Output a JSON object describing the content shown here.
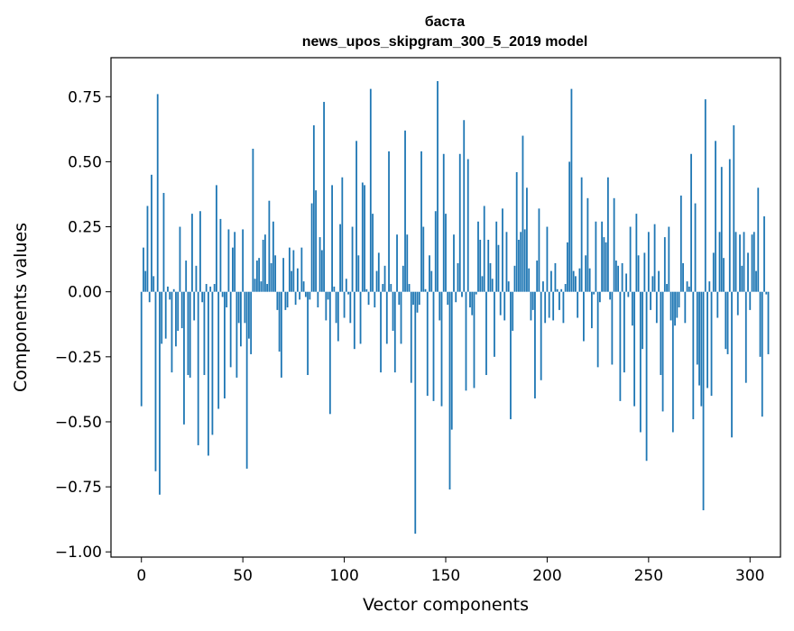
{
  "chart_data": {
    "type": "bar",
    "title_line1": "баста",
    "title_line2": "news_upos_skipgram_300_5_2019 model",
    "xlabel": "Vector components",
    "ylabel": "Components values",
    "xlim": [
      -15,
      315
    ],
    "ylim": [
      -1.02,
      0.9
    ],
    "xticks": [
      0,
      50,
      100,
      150,
      200,
      250,
      300
    ],
    "xtick_labels": [
      "0",
      "50",
      "100",
      "150",
      "200",
      "250",
      "300"
    ],
    "yticks": [
      -1.0,
      -0.75,
      -0.5,
      -0.25,
      0.0,
      0.25,
      0.5,
      0.75
    ],
    "ytick_labels": [
      "−1.00",
      "−0.75",
      "−0.50",
      "−0.25",
      "0.00",
      "0.25",
      "0.50",
      "0.75"
    ],
    "bar_color": "#1f77b4",
    "values": [
      -0.44,
      0.17,
      0.08,
      0.33,
      -0.04,
      0.45,
      0.06,
      -0.69,
      0.76,
      -0.78,
      -0.2,
      0.38,
      -0.18,
      0.02,
      -0.03,
      -0.31,
      0.01,
      -0.21,
      -0.15,
      0.25,
      -0.14,
      -0.51,
      0.12,
      -0.32,
      -0.33,
      0.3,
      -0.11,
      0.1,
      -0.59,
      0.31,
      -0.04,
      -0.32,
      0.03,
      -0.63,
      0.02,
      -0.55,
      0.03,
      0.41,
      -0.45,
      0.28,
      -0.02,
      -0.41,
      -0.06,
      0.24,
      -0.29,
      0.17,
      0.23,
      -0.33,
      -0.12,
      -0.21,
      0.24,
      -0.12,
      -0.68,
      -0.18,
      -0.24,
      0.55,
      0.05,
      0.12,
      0.13,
      0.04,
      0.2,
      0.22,
      0.03,
      0.35,
      0.11,
      0.27,
      0.14,
      -0.07,
      -0.23,
      -0.33,
      0.13,
      -0.07,
      -0.06,
      0.17,
      0.08,
      0.16,
      -0.05,
      0.09,
      -0.03,
      0.17,
      0.04,
      -0.02,
      -0.32,
      -0.03,
      0.34,
      0.64,
      0.39,
      -0.06,
      0.21,
      0.16,
      0.73,
      -0.11,
      -0.03,
      -0.47,
      0.41,
      0.02,
      -0.12,
      -0.19,
      0.26,
      0.44,
      -0.1,
      0.05,
      -0.01,
      -0.12,
      0.25,
      -0.22,
      0.58,
      0.14,
      -0.2,
      0.42,
      0.41,
      0.01,
      -0.05,
      0.78,
      0.3,
      -0.06,
      0.08,
      0.15,
      -0.31,
      0.03,
      0.1,
      -0.2,
      0.54,
      0.03,
      -0.15,
      -0.31,
      0.22,
      -0.05,
      -0.2,
      0.1,
      0.62,
      0.22,
      0.03,
      -0.35,
      -0.05,
      -0.93,
      -0.08,
      -0.05,
      0.54,
      0.25,
      0.01,
      -0.4,
      0.14,
      0.08,
      -0.42,
      0.31,
      0.81,
      -0.11,
      -0.44,
      0.53,
      0.3,
      -0.05,
      -0.76,
      -0.53,
      0.22,
      -0.04,
      0.11,
      0.53,
      -0.02,
      0.66,
      -0.38,
      0.51,
      -0.06,
      -0.09,
      -0.37,
      -0.01,
      0.27,
      0.2,
      0.06,
      0.33,
      -0.32,
      0.2,
      0.11,
      0.05,
      -0.25,
      0.27,
      0.18,
      -0.09,
      0.32,
      -0.11,
      0.23,
      0.04,
      -0.49,
      -0.15,
      0.1,
      0.46,
      0.2,
      0.23,
      0.6,
      0.24,
      0.4,
      0.09,
      -0.11,
      -0.07,
      -0.41,
      0.12,
      0.32,
      -0.34,
      0.04,
      -0.12,
      0.25,
      -0.1,
      0.08,
      -0.11,
      0.11,
      0.01,
      -0.07,
      0.01,
      -0.12,
      0.03,
      0.19,
      0.5,
      0.78,
      0.08,
      0.06,
      -0.1,
      0.09,
      0.44,
      -0.19,
      0.14,
      0.36,
      0.09,
      -0.14,
      -0.01,
      0.27,
      -0.29,
      -0.04,
      0.27,
      0.21,
      0.19,
      0.44,
      -0.03,
      -0.28,
      0.36,
      0.12,
      0.1,
      -0.42,
      0.11,
      -0.31,
      0.07,
      -0.02,
      0.25,
      -0.13,
      -0.44,
      0.3,
      0.14,
      -0.54,
      -0.22,
      0.15,
      -0.65,
      0.23,
      -0.07,
      0.06,
      0.26,
      -0.12,
      0.08,
      -0.32,
      -0.46,
      0.21,
      0.03,
      0.25,
      -0.11,
      -0.54,
      -0.13,
      -0.1,
      -0.06,
      0.37,
      0.11,
      -0.12,
      0.04,
      0.02,
      0.53,
      -0.49,
      0.34,
      -0.28,
      -0.36,
      -0.44,
      -0.84,
      0.74,
      -0.37,
      0.04,
      -0.4,
      0.15,
      0.58,
      -0.1,
      0.23,
      0.48,
      0.13,
      -0.22,
      -0.24,
      0.51,
      -0.56,
      0.64,
      0.23,
      -0.09,
      0.22,
      0.1,
      0.23,
      -0.35,
      0.15,
      -0.07,
      0.22,
      0.23,
      0.08,
      0.4,
      -0.25,
      -0.48,
      0.29,
      -0.01,
      -0.24
    ]
  }
}
